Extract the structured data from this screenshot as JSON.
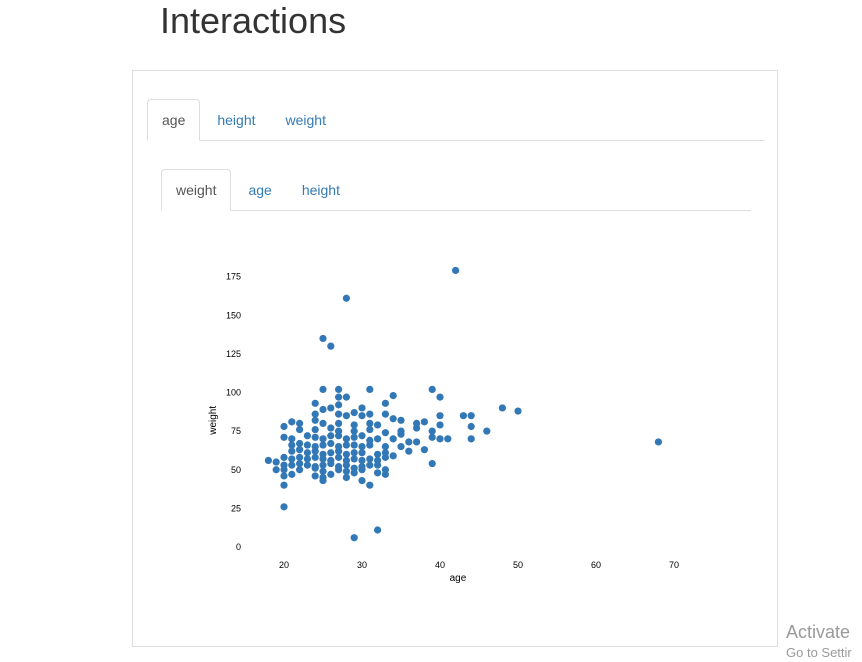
{
  "page": {
    "title": "Interactions"
  },
  "outer_tabs": [
    {
      "label": "age",
      "active": true
    },
    {
      "label": "height",
      "active": false
    },
    {
      "label": "weight",
      "active": false
    }
  ],
  "inner_tabs": [
    {
      "label": "weight",
      "active": true
    },
    {
      "label": "age",
      "active": false
    },
    {
      "label": "height",
      "active": false
    }
  ],
  "colors": {
    "point": "#3277b6",
    "link": "#337ab7"
  },
  "watermark": {
    "line1": "Activate",
    "line2": "Go to Settir"
  },
  "chart_data": {
    "type": "scatter",
    "title": "",
    "xlabel": "age",
    "ylabel": "weight",
    "xlim": [
      15,
      78
    ],
    "ylim": [
      -3,
      183
    ],
    "xticks": [
      20,
      30,
      40,
      50,
      60,
      70
    ],
    "yticks": [
      0,
      25,
      50,
      75,
      100,
      125,
      150,
      175
    ],
    "grid": false,
    "series": [
      {
        "points": [
          [
            42,
            179
          ],
          [
            28,
            161
          ],
          [
            25,
            135
          ],
          [
            26,
            130
          ],
          [
            25,
            102
          ],
          [
            27,
            102
          ],
          [
            31,
            102
          ],
          [
            39,
            102
          ],
          [
            34,
            98
          ],
          [
            27,
            97
          ],
          [
            28,
            97
          ],
          [
            40,
            97
          ],
          [
            24,
            93
          ],
          [
            27,
            92
          ],
          [
            30,
            90
          ],
          [
            33,
            93
          ],
          [
            26,
            90
          ],
          [
            25,
            89
          ],
          [
            48,
            90
          ],
          [
            50,
            88
          ],
          [
            24,
            86
          ],
          [
            27,
            86
          ],
          [
            29,
            87
          ],
          [
            31,
            86
          ],
          [
            33,
            86
          ],
          [
            28,
            85
          ],
          [
            30,
            85
          ],
          [
            34,
            83
          ],
          [
            35,
            82
          ],
          [
            40,
            85
          ],
          [
            43,
            85
          ],
          [
            44,
            85
          ],
          [
            24,
            82
          ],
          [
            21,
            81
          ],
          [
            22,
            80
          ],
          [
            25,
            80
          ],
          [
            27,
            80
          ],
          [
            29,
            79
          ],
          [
            31,
            80
          ],
          [
            32,
            79
          ],
          [
            37,
            80
          ],
          [
            38,
            81
          ],
          [
            40,
            79
          ],
          [
            44,
            78
          ],
          [
            20,
            78
          ],
          [
            22,
            76
          ],
          [
            24,
            76
          ],
          [
            26,
            77
          ],
          [
            27,
            75
          ],
          [
            29,
            75
          ],
          [
            31,
            76
          ],
          [
            33,
            74
          ],
          [
            35,
            75
          ],
          [
            37,
            77
          ],
          [
            39,
            75
          ],
          [
            46,
            75
          ],
          [
            20,
            71
          ],
          [
            21,
            70
          ],
          [
            23,
            72
          ],
          [
            24,
            71
          ],
          [
            25,
            70
          ],
          [
            26,
            72
          ],
          [
            27,
            72
          ],
          [
            28,
            70
          ],
          [
            29,
            71
          ],
          [
            30,
            72
          ],
          [
            31,
            69
          ],
          [
            32,
            70
          ],
          [
            34,
            70
          ],
          [
            35,
            73
          ],
          [
            36,
            68
          ],
          [
            37,
            68
          ],
          [
            39,
            71
          ],
          [
            40,
            70
          ],
          [
            41,
            70
          ],
          [
            44,
            70
          ],
          [
            68,
            68
          ],
          [
            21,
            66
          ],
          [
            22,
            67
          ],
          [
            23,
            66
          ],
          [
            24,
            65
          ],
          [
            25,
            66
          ],
          [
            26,
            67
          ],
          [
            27,
            65
          ],
          [
            28,
            66
          ],
          [
            29,
            66
          ],
          [
            30,
            65
          ],
          [
            31,
            66
          ],
          [
            33,
            65
          ],
          [
            35,
            65
          ],
          [
            36,
            62
          ],
          [
            38,
            63
          ],
          [
            21,
            62
          ],
          [
            22,
            63
          ],
          [
            23,
            61
          ],
          [
            24,
            62
          ],
          [
            25,
            60
          ],
          [
            26,
            61
          ],
          [
            27,
            62
          ],
          [
            28,
            60
          ],
          [
            29,
            61
          ],
          [
            30,
            61
          ],
          [
            32,
            60
          ],
          [
            33,
            61
          ],
          [
            34,
            59
          ],
          [
            20,
            58
          ],
          [
            21,
            57
          ],
          [
            22,
            58
          ],
          [
            23,
            57
          ],
          [
            24,
            58
          ],
          [
            25,
            57
          ],
          [
            26,
            56
          ],
          [
            27,
            58
          ],
          [
            28,
            56
          ],
          [
            29,
            57
          ],
          [
            30,
            56
          ],
          [
            31,
            57
          ],
          [
            32,
            56
          ],
          [
            33,
            58
          ],
          [
            18,
            56
          ],
          [
            19,
            55
          ],
          [
            20,
            53
          ],
          [
            21,
            53
          ],
          [
            22,
            54
          ],
          [
            23,
            53
          ],
          [
            24,
            52
          ],
          [
            25,
            53
          ],
          [
            26,
            54
          ],
          [
            27,
            52
          ],
          [
            28,
            53
          ],
          [
            30,
            52
          ],
          [
            31,
            53
          ],
          [
            32,
            53
          ],
          [
            39,
            54
          ],
          [
            19,
            50
          ],
          [
            20,
            50
          ],
          [
            22,
            50
          ],
          [
            24,
            51
          ],
          [
            25,
            49
          ],
          [
            27,
            50
          ],
          [
            28,
            49
          ],
          [
            29,
            51
          ],
          [
            30,
            50
          ],
          [
            32,
            48
          ],
          [
            33,
            50
          ],
          [
            20,
            46
          ],
          [
            21,
            47
          ],
          [
            24,
            46
          ],
          [
            25,
            45
          ],
          [
            26,
            47
          ],
          [
            28,
            45
          ],
          [
            29,
            48
          ],
          [
            33,
            47
          ],
          [
            30,
            43
          ],
          [
            25,
            43
          ],
          [
            20,
            40
          ],
          [
            31,
            40
          ],
          [
            20,
            26
          ],
          [
            32,
            11
          ],
          [
            29,
            6
          ]
        ]
      }
    ]
  }
}
